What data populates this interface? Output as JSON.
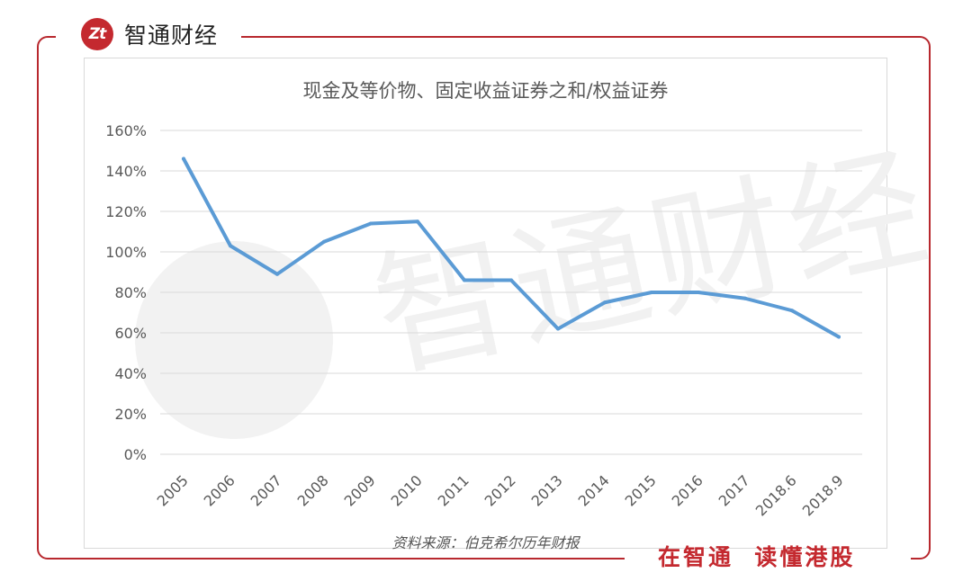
{
  "brand": {
    "logo_mark": "Zt",
    "name": "智通财经",
    "slogan": "在智通  读懂港股",
    "accent": "#c4292f"
  },
  "watermark": {
    "text": "智通财经"
  },
  "source": "资料来源：伯克希尔历年财报",
  "chart_data": {
    "type": "line",
    "title": "现金及等价物、固定收益证券之和/权益证券",
    "categories": [
      "2005",
      "2006",
      "2007",
      "2008",
      "2009",
      "2010",
      "2011",
      "2012",
      "2013",
      "2014",
      "2015",
      "2016",
      "2017",
      "2018.6",
      "2018.9"
    ],
    "series": [
      {
        "values": [
          146,
          103,
          89,
          105,
          114,
          115,
          86,
          86,
          62,
          75,
          80,
          80,
          77,
          71,
          58
        ],
        "color": "#5b9bd5"
      }
    ],
    "ylim": [
      0,
      160
    ],
    "yticks": [
      "0%",
      "20%",
      "40%",
      "60%",
      "80%",
      "100%",
      "120%",
      "140%",
      "160%"
    ],
    "grid": true,
    "legend": "none"
  }
}
